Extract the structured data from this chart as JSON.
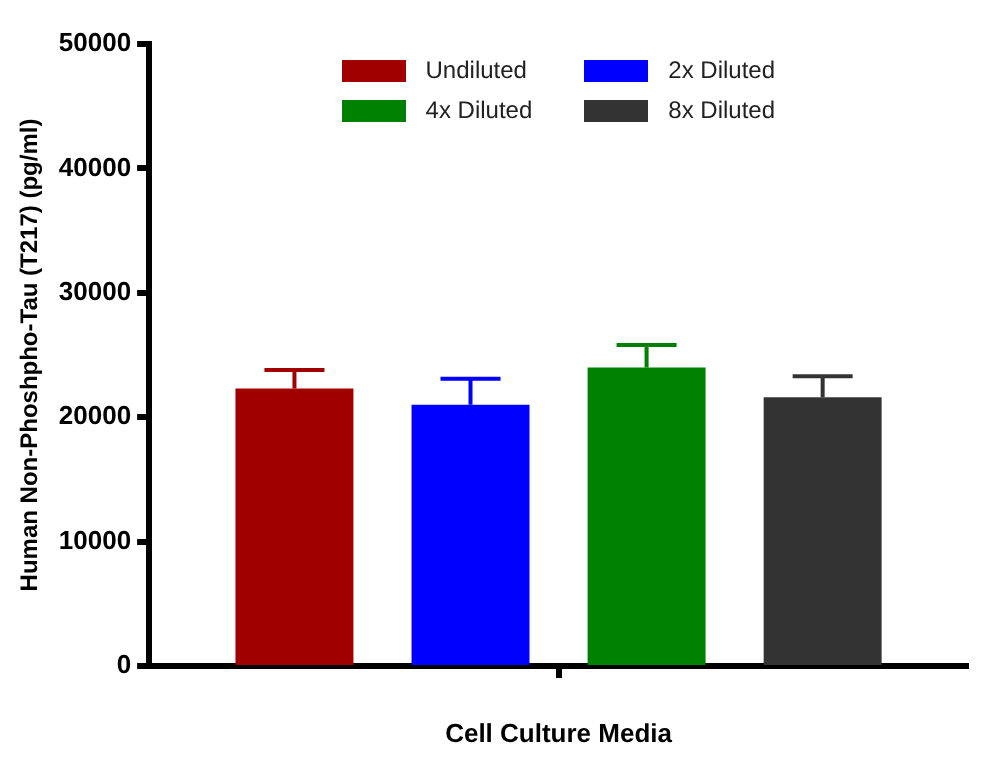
{
  "chart_data": {
    "type": "bar",
    "categories": [
      null
    ],
    "xlabel": "Cell Culture Media",
    "ylabel": "Human Non-Phoshpho-Tau (T217) (pg/ml)",
    "series": [
      {
        "name": "Undiluted",
        "color": "#a00000",
        "values": [
          22300
        ],
        "errors": [
          1500
        ]
      },
      {
        "name": "2x Diluted",
        "color": "#0000ff",
        "values": [
          21000
        ],
        "errors": [
          2100
        ]
      },
      {
        "name": "4x Diluted",
        "color": "#008000",
        "values": [
          24000
        ],
        "errors": [
          1800
        ]
      },
      {
        "name": "8x Diluted",
        "color": "#333333",
        "values": [
          21600
        ],
        "errors": [
          1700
        ]
      }
    ],
    "ylim": [
      0,
      50000
    ],
    "yticks": [
      0,
      10000,
      20000,
      30000,
      40000,
      50000
    ],
    "grid": false,
    "legend": "top"
  }
}
